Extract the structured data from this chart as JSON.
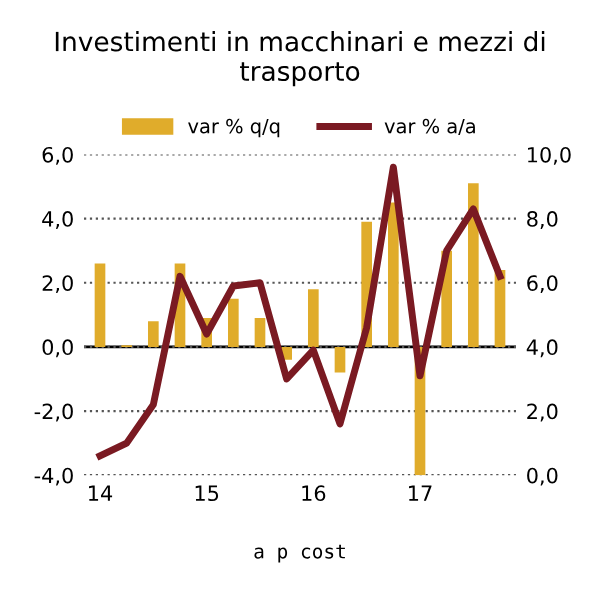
{
  "chart_data": {
    "type": "bar",
    "title": "Investimenti in macchinari e mezzi di trasporto",
    "categories": [
      "14",
      null,
      null,
      null,
      "15",
      null,
      null,
      null,
      "16",
      null,
      null,
      null,
      "17",
      null,
      null,
      null
    ],
    "series": [
      {
        "name": "var % q/q",
        "color": "#e0ac2b",
        "values": [
          2.6,
          0.05,
          0.8,
          2.6,
          0.9,
          1.5,
          0.9,
          -0.4,
          1.8,
          -0.8,
          3.9,
          4.5,
          -4.0,
          3.0,
          5.1,
          2.4
        ]
      },
      {
        "name": "var % a/a",
        "type": "line",
        "axis": "y2",
        "color": "#7a1a22",
        "values": [
          0.6,
          1.0,
          2.2,
          6.2,
          4.4,
          5.9,
          6.0,
          3.0,
          3.9,
          1.6,
          4.6,
          9.6,
          3.1,
          7.0,
          8.3,
          6.2
        ]
      }
    ],
    "ylim": [
      -4.0,
      6.0
    ],
    "yticks": [
      {
        "value": -4,
        "label": "-4,0"
      },
      {
        "value": -2,
        "label": "-2,0"
      },
      {
        "value": 0,
        "label": "0,0"
      },
      {
        "value": 2,
        "label": "2,0"
      },
      {
        "value": 4,
        "label": "4,0"
      },
      {
        "value": 6,
        "label": "6,0"
      }
    ],
    "y2lim": [
      0.0,
      10.0
    ],
    "y2ticks": [
      {
        "value": 0,
        "label": "0,0"
      },
      {
        "value": 2,
        "label": "2,0"
      },
      {
        "value": 4,
        "label": "4,0"
      },
      {
        "value": 6,
        "label": "6,0"
      },
      {
        "value": 8,
        "label": "8,0"
      },
      {
        "value": 10,
        "label": "10,0"
      }
    ],
    "grid": "y",
    "legend": "top",
    "annotations": [
      "a p cost"
    ]
  }
}
